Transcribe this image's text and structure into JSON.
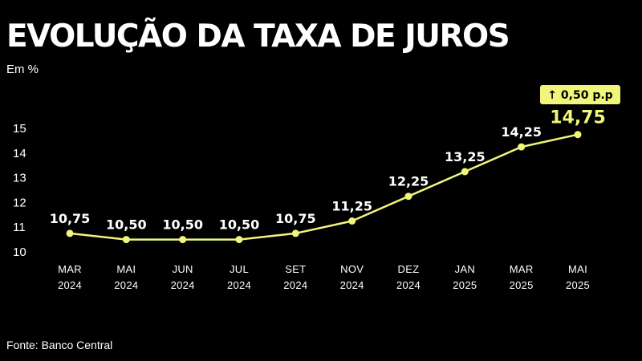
{
  "title": "EVOLUÇÃO DA TAXA DE JUROS",
  "subtitle": "Em %",
  "source": "Fonte: Banco Central",
  "colors": {
    "background": "#000000",
    "line": "#f1f57a",
    "text": "#ffffff",
    "highlight": "#f1f57a"
  },
  "chart_data": {
    "type": "line",
    "title": "EVOLUÇÃO DA TAXA DE JUROS",
    "subtitle": "Em %",
    "x_labels": [
      [
        "MAR",
        "2024"
      ],
      [
        "MAI",
        "2024"
      ],
      [
        "JUN",
        "2024"
      ],
      [
        "JUL",
        "2024"
      ],
      [
        "SET",
        "2024"
      ],
      [
        "NOV",
        "2024"
      ],
      [
        "DEZ",
        "2024"
      ],
      [
        "JAN",
        "2025"
      ],
      [
        "MAR",
        "2025"
      ],
      [
        "MAI",
        "2025"
      ]
    ],
    "values": [
      10.75,
      10.5,
      10.5,
      10.5,
      10.75,
      11.25,
      12.25,
      13.25,
      14.25,
      14.75
    ],
    "value_labels": [
      "10,75",
      "10,50",
      "10,50",
      "10,50",
      "10,75",
      "11,25",
      "12,25",
      "13,25",
      "14,25",
      "14,75"
    ],
    "y_ticks": [
      10,
      11,
      12,
      13,
      14,
      15
    ],
    "ylim": [
      10,
      15
    ],
    "grid": false,
    "annotation": {
      "text": "↑ 0,50 p.p",
      "point_index": 9
    }
  }
}
